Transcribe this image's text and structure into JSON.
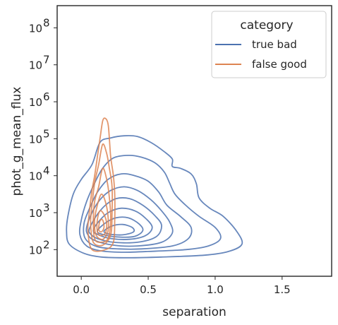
{
  "chart_data": {
    "type": "kde-contour",
    "xlabel": "separation",
    "ylabel": "phot_g_mean_flux",
    "x_ticks": [
      "0.0",
      "0.5",
      "1.0",
      "1.5"
    ],
    "y_ticks": [
      "2",
      "3",
      "4",
      "5",
      "6",
      "7",
      "8"
    ],
    "y_tick_base": "10",
    "xlim": [
      -0.18,
      1.87
    ],
    "ylim_log10": [
      1.28,
      8.6
    ],
    "y_scale": "log",
    "legend": {
      "title": "category",
      "placement": "top-right",
      "entries": [
        {
          "label": "true bad",
          "color": "#4c72b0"
        },
        {
          "label": "false good",
          "color": "#dd8452"
        }
      ]
    },
    "series": [
      {
        "name": "true bad",
        "color": "#4c72b0",
        "contours": [
          [
            [
              -0.1,
              2.9
            ],
            [
              -0.06,
              3.5
            ],
            [
              0.0,
              3.9
            ],
            [
              0.08,
              4.3
            ],
            [
              0.14,
              4.9
            ],
            [
              0.22,
              5.02
            ],
            [
              0.32,
              5.08
            ],
            [
              0.42,
              5.06
            ],
            [
              0.52,
              4.9
            ],
            [
              0.62,
              4.65
            ],
            [
              0.68,
              4.45
            ],
            [
              0.68,
              4.25
            ],
            [
              0.74,
              4.2
            ],
            [
              0.82,
              4.05
            ],
            [
              0.86,
              3.78
            ],
            [
              0.88,
              3.4
            ],
            [
              0.96,
              3.12
            ],
            [
              1.06,
              2.9
            ],
            [
              1.16,
              2.5
            ],
            [
              1.2,
              2.15
            ],
            [
              1.1,
              1.95
            ],
            [
              0.92,
              1.85
            ],
            [
              0.6,
              1.8
            ],
            [
              0.35,
              1.78
            ],
            [
              0.15,
              1.8
            ],
            [
              0.02,
              1.9
            ],
            [
              -0.09,
              2.15
            ],
            [
              -0.11,
              2.5
            ],
            [
              -0.1,
              2.9
            ]
          ],
          [
            [
              0.0,
              2.8
            ],
            [
              0.04,
              3.3
            ],
            [
              0.1,
              3.8
            ],
            [
              0.16,
              4.2
            ],
            [
              0.24,
              4.48
            ],
            [
              0.35,
              4.55
            ],
            [
              0.45,
              4.5
            ],
            [
              0.55,
              4.35
            ],
            [
              0.62,
              4.1
            ],
            [
              0.66,
              3.8
            ],
            [
              0.7,
              3.5
            ],
            [
              0.78,
              3.2
            ],
            [
              0.88,
              2.9
            ],
            [
              1.0,
              2.6
            ],
            [
              1.04,
              2.3
            ],
            [
              0.95,
              2.1
            ],
            [
              0.78,
              2.0
            ],
            [
              0.5,
              1.95
            ],
            [
              0.3,
              1.93
            ],
            [
              0.14,
              1.97
            ],
            [
              0.04,
              2.1
            ],
            [
              -0.01,
              2.4
            ],
            [
              0.0,
              2.8
            ]
          ],
          [
            [
              0.02,
              2.7
            ],
            [
              0.06,
              3.1
            ],
            [
              0.12,
              3.55
            ],
            [
              0.2,
              3.9
            ],
            [
              0.3,
              4.05
            ],
            [
              0.4,
              4.0
            ],
            [
              0.5,
              3.85
            ],
            [
              0.58,
              3.55
            ],
            [
              0.64,
              3.2
            ],
            [
              0.74,
              2.9
            ],
            [
              0.82,
              2.6
            ],
            [
              0.8,
              2.3
            ],
            [
              0.68,
              2.1
            ],
            [
              0.45,
              2.02
            ],
            [
              0.28,
              2.02
            ],
            [
              0.12,
              2.08
            ],
            [
              0.03,
              2.3
            ],
            [
              0.02,
              2.7
            ]
          ],
          [
            [
              0.04,
              2.6
            ],
            [
              0.08,
              3.0
            ],
            [
              0.14,
              3.35
            ],
            [
              0.22,
              3.6
            ],
            [
              0.32,
              3.7
            ],
            [
              0.42,
              3.6
            ],
            [
              0.52,
              3.35
            ],
            [
              0.6,
              3.05
            ],
            [
              0.66,
              2.75
            ],
            [
              0.68,
              2.45
            ],
            [
              0.6,
              2.2
            ],
            [
              0.42,
              2.1
            ],
            [
              0.24,
              2.12
            ],
            [
              0.1,
              2.25
            ],
            [
              0.05,
              2.4
            ],
            [
              0.04,
              2.6
            ]
          ],
          [
            [
              0.06,
              2.55
            ],
            [
              0.11,
              2.9
            ],
            [
              0.18,
              3.2
            ],
            [
              0.26,
              3.38
            ],
            [
              0.36,
              3.38
            ],
            [
              0.46,
              3.2
            ],
            [
              0.55,
              2.92
            ],
            [
              0.6,
              2.65
            ],
            [
              0.56,
              2.35
            ],
            [
              0.42,
              2.2
            ],
            [
              0.24,
              2.2
            ],
            [
              0.12,
              2.3
            ],
            [
              0.07,
              2.42
            ],
            [
              0.06,
              2.55
            ]
          ],
          [
            [
              0.09,
              2.52
            ],
            [
              0.14,
              2.8
            ],
            [
              0.21,
              3.02
            ],
            [
              0.3,
              3.12
            ],
            [
              0.4,
              3.05
            ],
            [
              0.48,
              2.85
            ],
            [
              0.53,
              2.6
            ],
            [
              0.48,
              2.38
            ],
            [
              0.36,
              2.28
            ],
            [
              0.22,
              2.3
            ],
            [
              0.13,
              2.4
            ],
            [
              0.09,
              2.52
            ]
          ],
          [
            [
              0.12,
              2.5
            ],
            [
              0.18,
              2.72
            ],
            [
              0.26,
              2.86
            ],
            [
              0.35,
              2.86
            ],
            [
              0.43,
              2.7
            ],
            [
              0.46,
              2.52
            ],
            [
              0.4,
              2.36
            ],
            [
              0.28,
              2.34
            ],
            [
              0.17,
              2.4
            ],
            [
              0.12,
              2.5
            ]
          ],
          [
            [
              0.17,
              2.5
            ],
            [
              0.23,
              2.64
            ],
            [
              0.31,
              2.68
            ],
            [
              0.38,
              2.6
            ],
            [
              0.39,
              2.48
            ],
            [
              0.31,
              2.4
            ],
            [
              0.21,
              2.42
            ],
            [
              0.17,
              2.5
            ]
          ]
        ]
      },
      {
        "name": "false good",
        "color": "#dd8452",
        "contours": [
          [
            [
              0.08,
              2.0
            ],
            [
              0.05,
              2.5
            ],
            [
              0.06,
              3.0
            ],
            [
              0.08,
              3.6
            ],
            [
              0.1,
              4.0
            ],
            [
              0.12,
              4.5
            ],
            [
              0.14,
              5.0
            ],
            [
              0.16,
              5.48
            ],
            [
              0.18,
              5.55
            ],
            [
              0.2,
              5.4
            ],
            [
              0.21,
              5.0
            ],
            [
              0.22,
              4.5
            ],
            [
              0.24,
              4.0
            ],
            [
              0.25,
              3.5
            ],
            [
              0.25,
              2.8
            ],
            [
              0.24,
              2.2
            ],
            [
              0.18,
              2.0
            ],
            [
              0.08,
              2.0
            ]
          ],
          [
            [
              0.09,
              2.2
            ],
            [
              0.07,
              2.7
            ],
            [
              0.08,
              3.2
            ],
            [
              0.1,
              3.8
            ],
            [
              0.13,
              4.3
            ],
            [
              0.16,
              4.85
            ],
            [
              0.19,
              4.6
            ],
            [
              0.21,
              4.2
            ],
            [
              0.23,
              3.7
            ],
            [
              0.23,
              3.0
            ],
            [
              0.22,
              2.4
            ],
            [
              0.16,
              2.12
            ],
            [
              0.09,
              2.2
            ]
          ],
          [
            [
              0.1,
              2.3
            ],
            [
              0.09,
              2.8
            ],
            [
              0.1,
              3.3
            ],
            [
              0.13,
              3.7
            ],
            [
              0.16,
              4.2
            ],
            [
              0.19,
              3.9
            ],
            [
              0.21,
              3.4
            ],
            [
              0.22,
              2.8
            ],
            [
              0.2,
              2.3
            ],
            [
              0.14,
              2.2
            ],
            [
              0.1,
              2.3
            ]
          ],
          [
            [
              0.11,
              2.4
            ],
            [
              0.1,
              2.8
            ],
            [
              0.12,
              3.2
            ],
            [
              0.15,
              3.5
            ],
            [
              0.18,
              3.3
            ],
            [
              0.2,
              2.9
            ],
            [
              0.2,
              2.5
            ],
            [
              0.16,
              2.28
            ],
            [
              0.11,
              2.4
            ]
          ],
          [
            [
              0.12,
              2.5
            ],
            [
              0.12,
              2.8
            ],
            [
              0.14,
              3.05
            ],
            [
              0.17,
              2.95
            ],
            [
              0.19,
              2.7
            ],
            [
              0.18,
              2.45
            ],
            [
              0.14,
              2.38
            ],
            [
              0.12,
              2.5
            ]
          ],
          [
            [
              0.13,
              2.55
            ],
            [
              0.14,
              2.78
            ],
            [
              0.16,
              2.8
            ],
            [
              0.17,
              2.6
            ],
            [
              0.15,
              2.48
            ],
            [
              0.13,
              2.55
            ]
          ]
        ]
      }
    ]
  }
}
